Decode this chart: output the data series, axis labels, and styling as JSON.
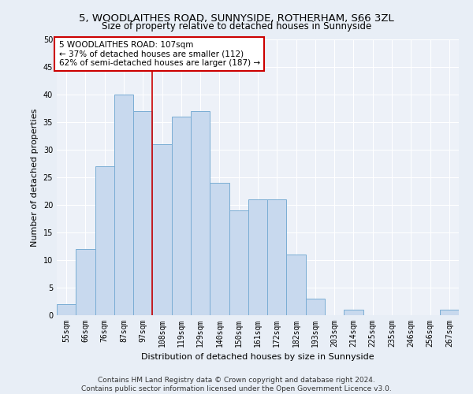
{
  "title": "5, WOODLAITHES ROAD, SUNNYSIDE, ROTHERHAM, S66 3ZL",
  "subtitle": "Size of property relative to detached houses in Sunnyside",
  "xlabel": "Distribution of detached houses by size in Sunnyside",
  "ylabel": "Number of detached properties",
  "bar_labels": [
    "55sqm",
    "66sqm",
    "76sqm",
    "87sqm",
    "97sqm",
    "108sqm",
    "119sqm",
    "129sqm",
    "140sqm",
    "150sqm",
    "161sqm",
    "172sqm",
    "182sqm",
    "193sqm",
    "203sqm",
    "214sqm",
    "225sqm",
    "235sqm",
    "246sqm",
    "256sqm",
    "267sqm"
  ],
  "bar_values": [
    2,
    12,
    27,
    40,
    37,
    31,
    36,
    37,
    24,
    19,
    21,
    21,
    11,
    3,
    0,
    1,
    0,
    0,
    0,
    0,
    1
  ],
  "bar_color": "#c8d9ee",
  "bar_edge_color": "#7aadd4",
  "vline_x_index": 5,
  "vline_color": "#cc0000",
  "annotation_text": "5 WOODLAITHES ROAD: 107sqm\n← 37% of detached houses are smaller (112)\n62% of semi-detached houses are larger (187) →",
  "annotation_box_color": "#ffffff",
  "annotation_box_edge_color": "#cc0000",
  "ylim": [
    0,
    50
  ],
  "yticks": [
    0,
    5,
    10,
    15,
    20,
    25,
    30,
    35,
    40,
    45,
    50
  ],
  "bg_color": "#e8eef6",
  "plot_bg_color": "#edf1f8",
  "grid_color": "#ffffff",
  "footer_text": "Contains HM Land Registry data © Crown copyright and database right 2024.\nContains public sector information licensed under the Open Government Licence v3.0.",
  "title_fontsize": 9.5,
  "subtitle_fontsize": 8.5,
  "ylabel_fontsize": 8,
  "xlabel_fontsize": 8,
  "tick_fontsize": 7,
  "annotation_fontsize": 7.5,
  "footer_fontsize": 6.5
}
